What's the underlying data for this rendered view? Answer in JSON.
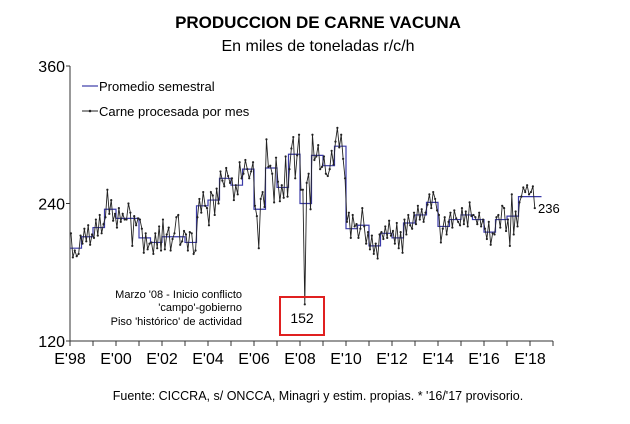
{
  "chart_data": {
    "type": "line",
    "title": "PRODUCCION DE CARNE VACUNA",
    "subtitle": "En miles de toneladas r/c/h",
    "source": "Fuente: CICCRA, s/ ONCCA, Minagri y estim. propias. * '16/'17 provisorio.",
    "ylim": [
      120,
      360
    ],
    "yticks": [
      "120",
      "240",
      "360"
    ],
    "xlim": [
      1998,
      2019
    ],
    "xtick_labels": [
      "E'98",
      "E'00",
      "E'02",
      "E'04",
      "E'06",
      "E'08",
      "E'10",
      "E'12",
      "E'14",
      "E'16",
      "E'18"
    ],
    "legend": [
      "Promedio semestral",
      "Carne procesada por mes"
    ],
    "legend_position": "top-left",
    "colors": {
      "semestral": "#3a3aa8",
      "monthly": "#222222",
      "highlight": "#e02020"
    },
    "series": [
      {
        "name": "Promedio semestral",
        "start": 1998,
        "period": "semester",
        "values": [
          201,
          211,
          219,
          235,
          227,
          227,
          210,
          206,
          211,
          211,
          206,
          238,
          243,
          262,
          256,
          270,
          235,
          271,
          254,
          283,
          240,
          282,
          273,
          290,
          218,
          221,
          203,
          214,
          210,
          223,
          230,
          241,
          220,
          226,
          230,
          226,
          215,
          226,
          229,
          246,
          246
        ]
      },
      {
        "name": "Carne procesada por mes",
        "start": 1998,
        "period": "month",
        "values": [
          214,
          193,
          199,
          194,
          196,
          212,
          205,
          218,
          207,
          221,
          204,
          213,
          210,
          226,
          212,
          230,
          214,
          222,
          228,
          252,
          231,
          243,
          225,
          231,
          219,
          236,
          224,
          231,
          226,
          226,
          240,
          232,
          203,
          229,
          221,
          227,
          226,
          218,
          197,
          214,
          200,
          205,
          206,
          196,
          214,
          201,
          220,
          199,
          226,
          200,
          213,
          219,
          199,
          209,
          214,
          228,
          230,
          204,
          207,
          216,
          213,
          199,
          215,
          214,
          196,
          199,
          228,
          244,
          232,
          250,
          238,
          236,
          221,
          250,
          247,
          230,
          253,
          240,
          268,
          260,
          255,
          271,
          264,
          258,
          262,
          243,
          256,
          248,
          276,
          262,
          266,
          278,
          270,
          262,
          268,
          276,
          238,
          229,
          201,
          244,
          250,
          237,
          296,
          272,
          273,
          266,
          241,
          280,
          259,
          242,
          256,
          245,
          281,
          246,
          270,
          288,
          298,
          262,
          282,
          300,
          252,
          252,
          152,
          258,
          266,
          235,
          300,
          278,
          281,
          291,
          270,
          272,
          281,
          266,
          264,
          270,
          286,
          274,
          294,
          306,
          289,
          300,
          279,
          262,
          224,
          232,
          210,
          230,
          220,
          222,
          210,
          218,
          236,
          220,
          205,
          215,
          200,
          212,
          196,
          205,
          192,
          213,
          215,
          209,
          220,
          210,
          225,
          212,
          216,
          205,
          223,
          201,
          215,
          197,
          226,
          213,
          230,
          221,
          218,
          232,
          222,
          238,
          226,
          235,
          224,
          232,
          239,
          248,
          236,
          250,
          244,
          234,
          230,
          206,
          218,
          228,
          213,
          224,
          232,
          219,
          234,
          227,
          224,
          221,
          236,
          222,
          233,
          220,
          241,
          229,
          230,
          228,
          222,
          232,
          220,
          226,
          218,
          209,
          224,
          204,
          214,
          213,
          228,
          230,
          219,
          238,
          236,
          216,
          226,
          203,
          248,
          213,
          233,
          220,
          241,
          246,
          254,
          250,
          256,
          248,
          250,
          255,
          236
        ]
      }
    ],
    "annotations": {
      "min_label": "152",
      "last_label": "236",
      "note": [
        "Marzo '08 - Inicio conflicto",
        "'campo'-gobierno",
        "Piso 'histórico' de actividad"
      ]
    }
  }
}
